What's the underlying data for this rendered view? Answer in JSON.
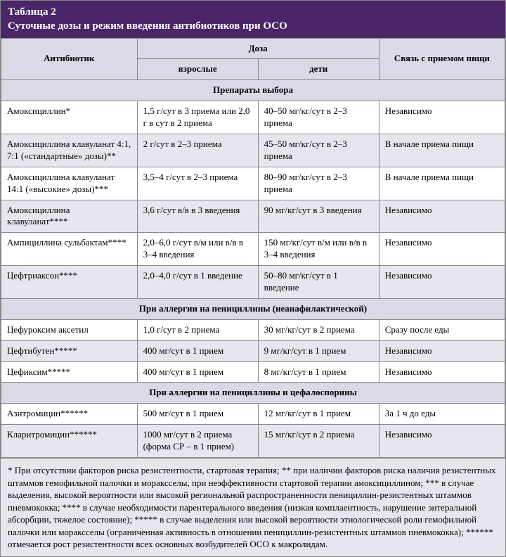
{
  "title_line1": "Таблица  2",
  "title_line2": "Суточные дозы и режим введения антибиотиков при ОСО",
  "headers": {
    "antibiotic": "Антибиотик",
    "dose": "Доза",
    "adults": "взрослые",
    "children": "дети",
    "food": "Связь с приемом пищи"
  },
  "sections": [
    {
      "title": "Препараты выбора",
      "rows": [
        {
          "name": "Амоксициллин*",
          "adults": "1,5 г/сут в 3 приема или 2,0 г в сут в 2 приема",
          "children": "40–50 мг/кг/сут в 2–3 приема",
          "food": "Независимо",
          "alt": false
        },
        {
          "name": "Амоксициллина клавуланат 4:1, 7:1 («стандартные» дозы)**",
          "adults": "2 г/сут в 2–3 приема",
          "children": "45–50 мг/кг/сут в 2–3 приема",
          "food": "В начале приема пищи",
          "alt": true
        },
        {
          "name": "Амоксициллина клавуланат 14:1 («высокие» дозы)***",
          "adults": "3,5–4 г/сут в 2–3 приема",
          "children": "80–90 мг/кг/сут в 2–3 приема",
          "food": "В начале приема пищи",
          "alt": false
        },
        {
          "name": "Амоксициллина клавуланат****",
          "adults": "3,6 г/сут в/в в 3 введения",
          "children": "90 мг/кг/сут в 3 введения",
          "food": "Независимо",
          "alt": true
        },
        {
          "name": "Ампициллина сульбактам****",
          "adults": "2,0–6,0 г/сут в/м или в/в в 3–4 введения",
          "children": "150 мг/кг/сут в/м или в/в в 3–4 введения",
          "food": "Независимо",
          "alt": false
        },
        {
          "name": "Цефтриаксон****",
          "adults": "2,0–4,0 г/сут в 1 введение",
          "children": "50–80 мг/кг/сут в 1 введение",
          "food": "Независимо",
          "alt": true
        }
      ]
    },
    {
      "title": "При аллергии на пенициллины (неанафилактической)",
      "rows": [
        {
          "name": "Цефуроксим аксетил",
          "adults": "1,0 г/сут в 2 приема",
          "children": "30 мг/кг/сут в 2 приема",
          "food": "Сразу после еды",
          "alt": false
        },
        {
          "name": "Цефтибутен*****",
          "adults": "400 мг/сут в 1 прием",
          "children": "9 мг/кг/сут в 1 прием",
          "food": "Независимо",
          "alt": true
        },
        {
          "name": "Цефиксим*****",
          "adults": "400 мг/сут в 1 прием",
          "children": "8 мг/кг/сут в 1 прием",
          "food": "Независимо",
          "alt": false
        }
      ]
    },
    {
      "title": "При аллергии на пенициллины и цефалоспорины",
      "rows": [
        {
          "name": "Азитромицин******",
          "adults": "500 мг/сут в 1 прием",
          "children": "12 мг/кг/сут в 1 прием",
          "food": "За 1 ч до еды",
          "alt": false
        },
        {
          "name": "Кларитромицин******",
          "adults": "1000 мг/сут в 2 приема (форма СР – в 1 прием)",
          "children": "15 мг/кг/сут в 2 приема",
          "food": "Независимо",
          "alt": true
        }
      ]
    }
  ],
  "footnote": "* При отсутствии факторов риска резистентности, стартовая терапия; ** при наличии факторов риска наличия резистентных штаммов гемофильной палочки и мораксселы, при неэффективности стартовой терапии амоксициллином; *** в случае выделения, высокой вероятности или высокой региональной распространенности пенициллин-резистентных штаммов пневмококка; **** в случае необходимости парентерального введения (низкая комплаентность, нарушение энтеральной абсорбции, тяжелое состояние); ***** в случае выделения или высокой вероятности этиологической роли гемофильной палочки или мораксселы (ограниченная активность в отношении пенициллин-резистентных штаммов пневмококка); ****** отмечается рост резистентности всех основных возбудителей ОСО к макролидам.",
  "colors": {
    "title_bg": "#4a2568",
    "header_bg": "#dcd8e6",
    "alt_bg": "#e9e5ee",
    "border": "#888888"
  }
}
